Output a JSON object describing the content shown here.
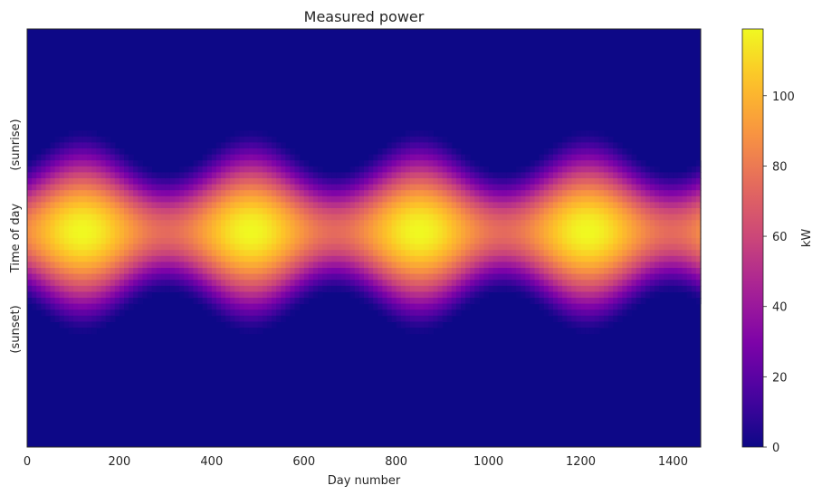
{
  "chart_data": {
    "type": "heatmap",
    "title": "Measured power",
    "xlabel": "Day number",
    "ylabel": "Time of day",
    "y_annotations": [
      "(sunrise)",
      "(sunset)"
    ],
    "xlim": [
      0,
      1460
    ],
    "x_ticks": [
      0,
      200,
      400,
      600,
      800,
      1000,
      1200,
      1400
    ],
    "colorbar": {
      "label": "kW",
      "range": [
        0,
        119
      ],
      "ticks": [
        0,
        20,
        40,
        60,
        80,
        100
      ],
      "colormap": "plasma"
    },
    "seasonal_model": {
      "period_days": 365,
      "peak_days": [
        120,
        485,
        850,
        1215
      ],
      "peak_kw_summer": 119,
      "peak_kw_winter": 75,
      "noon_fraction_of_axis": 0.485,
      "daylight_halfwidth_fraction_summer": 0.25,
      "daylight_halfwidth_fraction_winter": 0.15
    },
    "grid": false,
    "colors": {
      "background_low": "#0d0887",
      "high": "#f0f921"
    }
  }
}
